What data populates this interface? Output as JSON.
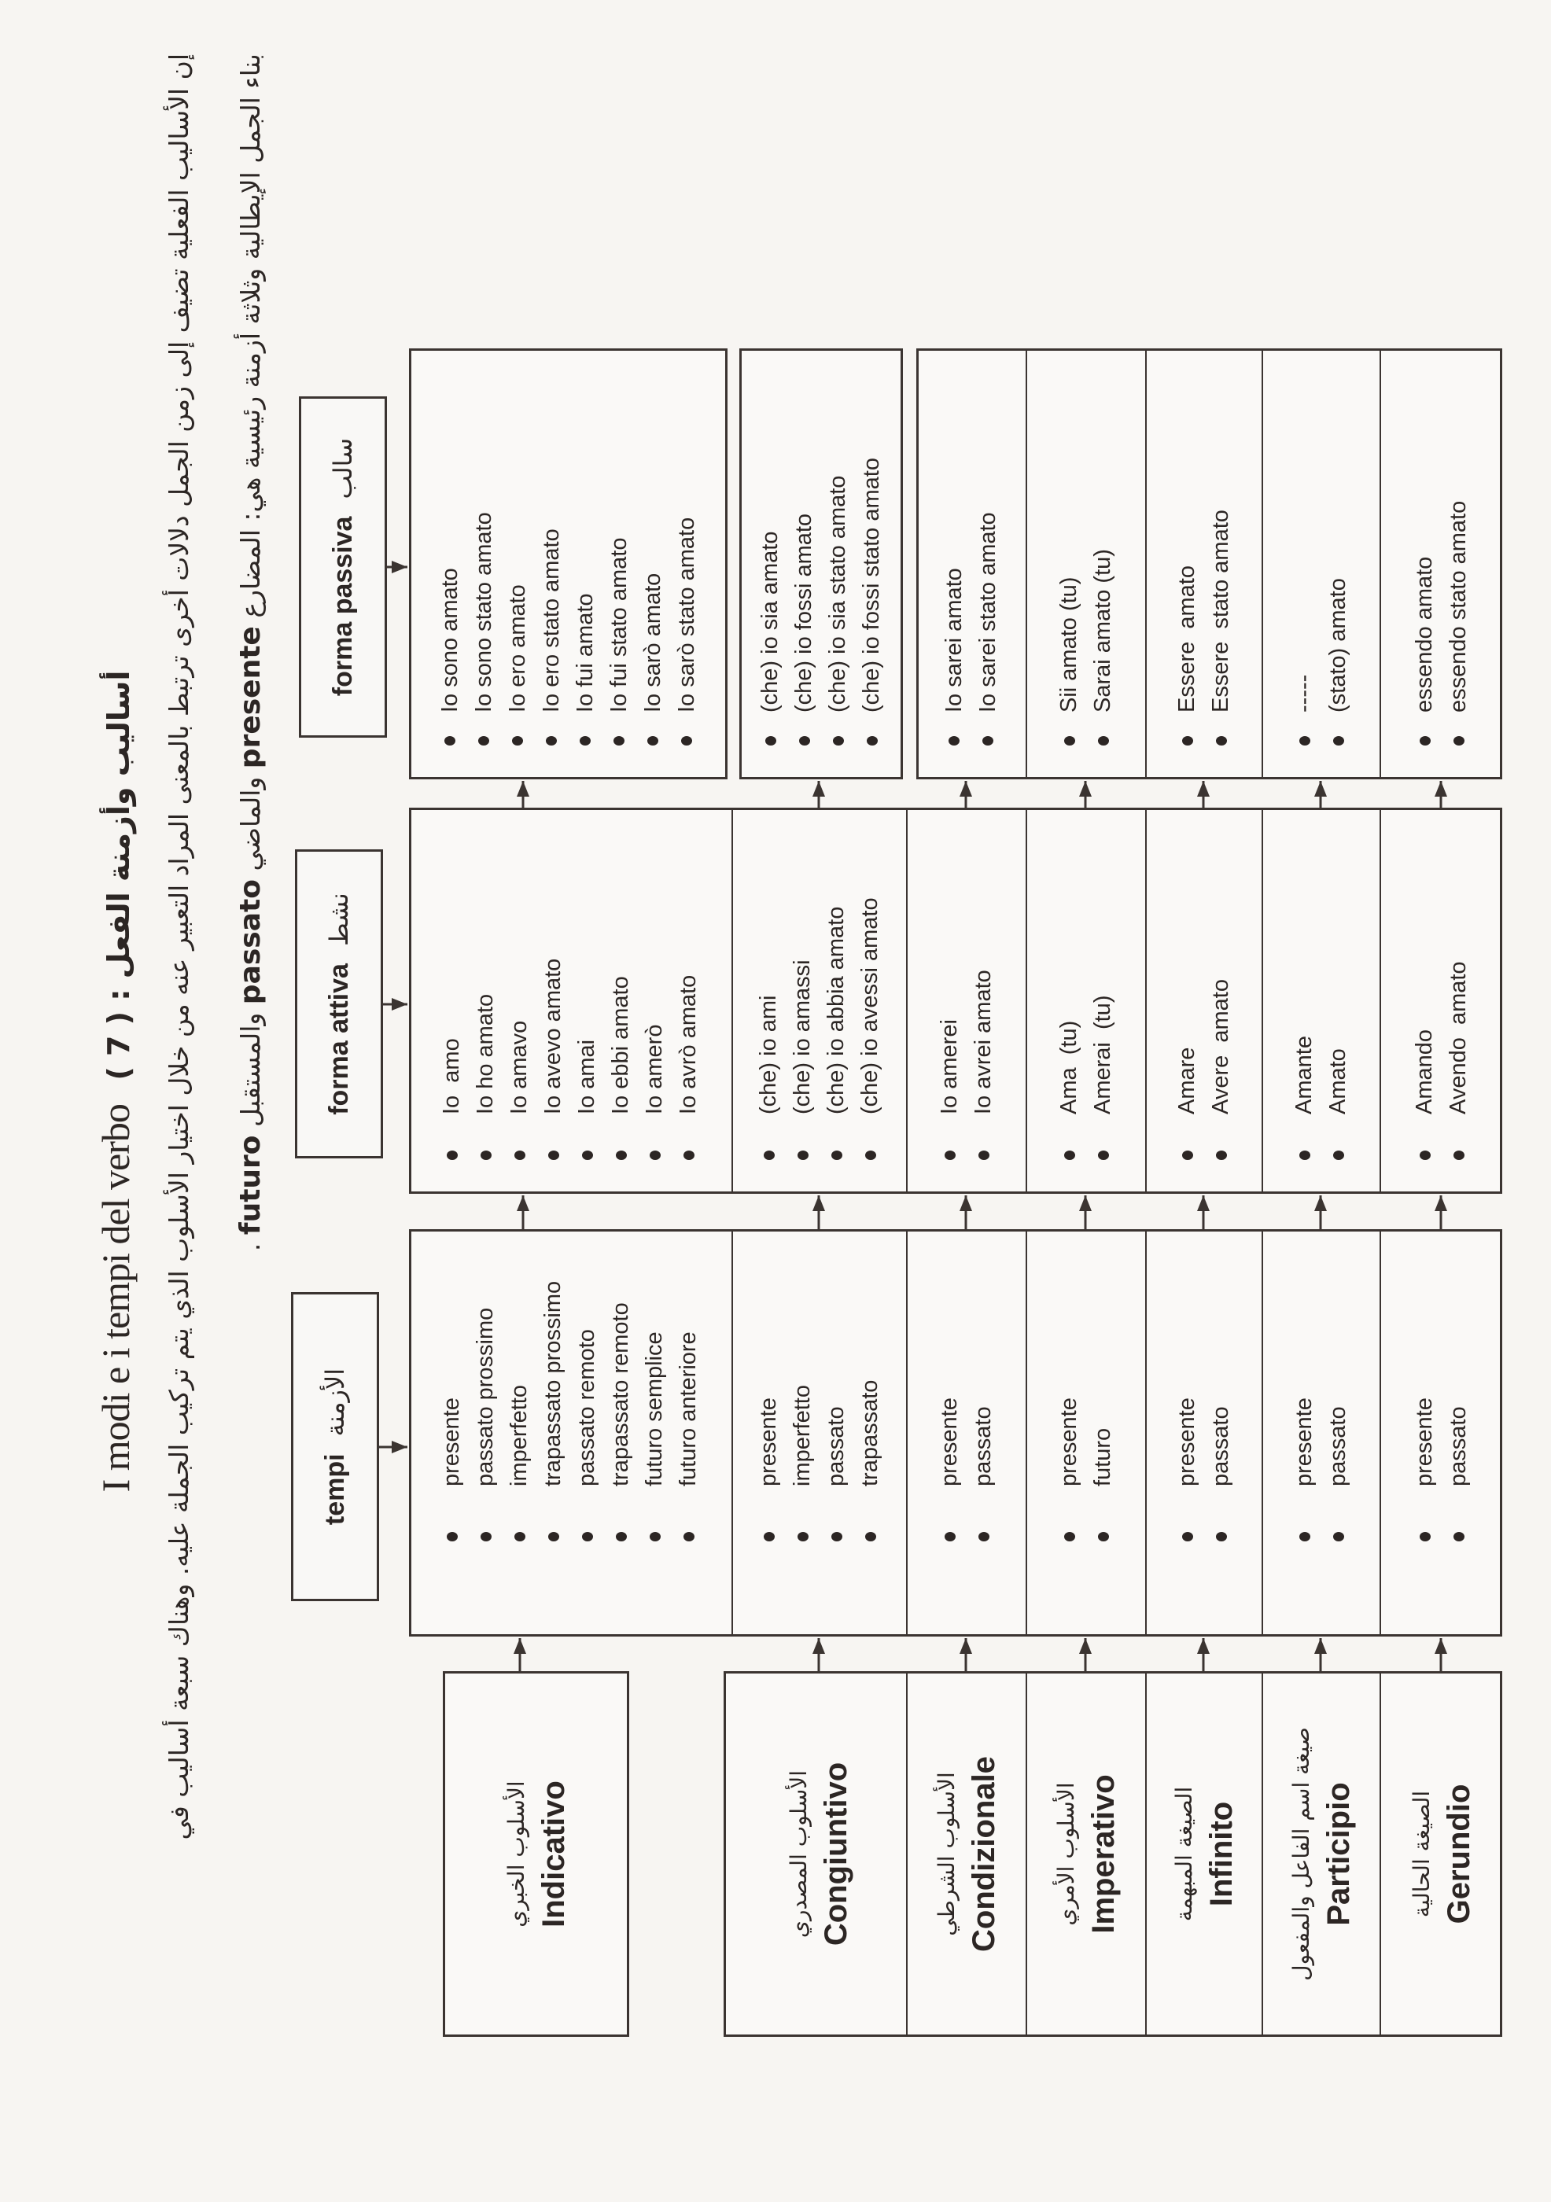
{
  "title": {
    "italian": "I modi e i tempi del verbo",
    "arabic": "أساليب وأزمنة الفعل : ( 7 )"
  },
  "intro": {
    "line1": "إن الأساليب الفعلية تضيف إلى زمن الجمل دلالات أخرى ترتبط بالمعنى المراد التعبير عنه من خلال اختيار الأسلوب الذي يتم تركيب الجملة عليه. وهناك سبعة أساليب في",
    "line2_a": "بناء الجمل الإيطالية وثلاثة أزمنة رئيسية هي: المضارع",
    "presente": "presente",
    "line2_b": "والماضي",
    "passato": "passato",
    "line2_c": "والمستقبل",
    "futuro": "futuro",
    "line2_end": "."
  },
  "headers": {
    "tempi": {
      "italian": "tempi",
      "arabic": "الأزمنة"
    },
    "attiva": {
      "italian": "forma attiva",
      "arabic": "نشط"
    },
    "passiva": {
      "italian": "forma passiva",
      "arabic": "سالب"
    }
  },
  "modes": [
    {
      "arabic": "الأسلوب الخبري",
      "italian": "Indicativo",
      "tempi": [
        "presente",
        "passato prossimo",
        "imperfetto",
        "trapassato prossimo",
        "passato remoto",
        "trapassato remoto",
        "futuro semplice",
        "futuro anteriore"
      ],
      "attiva": [
        "Io  amo",
        "Io ho amato",
        "Io amavo",
        "Io avevo amato",
        "Io amai",
        "Io ebbi amato",
        "Io amerò",
        "Io avrò amato"
      ],
      "passiva": [
        "Io sono amato",
        "Io sono stato amato",
        "Io ero amato",
        "Io ero stato amato",
        "Io fui amato",
        "Io fui stato amato",
        "Io sarò amato",
        "Io sarò stato amato"
      ]
    },
    {
      "arabic": "الأسلوب المصدري",
      "italian": "Congiuntivo",
      "tempi": [
        "presente",
        "imperfetto",
        "passato",
        "trapassato"
      ],
      "attiva": [
        "(che) io ami",
        "(che) io amassi",
        "(che) io abbia amato",
        "(che) io avessi amato"
      ],
      "passiva": [
        "(che) io sia amato",
        "(che) io fossi amato",
        "(che) io sia stato amato",
        "(che) io fossi stato amato"
      ]
    },
    {
      "arabic": "الأسلوب الشرطي",
      "italian": "Condizionale",
      "tempi": [
        "presente",
        "passato"
      ],
      "attiva": [
        "Io amerei",
        "Io avrei amato"
      ],
      "passiva": [
        "Io sarei amato",
        "Io sarei stato amato"
      ]
    },
    {
      "arabic": "الأسلوب الأمري",
      "italian": "Imperativo",
      "tempi": [
        "presente",
        "futuro"
      ],
      "attiva": [
        "Ama  (tu)",
        "Amerai  (tu)"
      ],
      "passiva": [
        "Sii amato (tu)",
        "Sarai amato (tu)"
      ]
    },
    {
      "arabic": "الصيغة المبهمة",
      "italian": "Infinito",
      "tempi": [
        "presente",
        "passato"
      ],
      "attiva": [
        "Amare",
        "Avere  amato"
      ],
      "passiva": [
        "Essere  amato",
        "Essere  stato amato"
      ]
    },
    {
      "arabic": "صيغة اسم الفاعل والمفعول",
      "italian": "Participio",
      "tempi": [
        "presente",
        "passato"
      ],
      "attiva": [
        "Amante",
        "Amato"
      ],
      "passiva": [
        "-----",
        "(stato) amato"
      ]
    },
    {
      "arabic": "الصيغة الحالية",
      "italian": "Gerundio",
      "tempi": [
        "presente",
        "passato"
      ],
      "attiva": [
        "Amando",
        "Avendo  amato"
      ],
      "passiva": [
        "essendo amato",
        "essendo stato amato"
      ]
    }
  ],
  "colors": {
    "paper": "#f7f5f2",
    "ink": "#2c2624",
    "rule": "#3b3431"
  }
}
